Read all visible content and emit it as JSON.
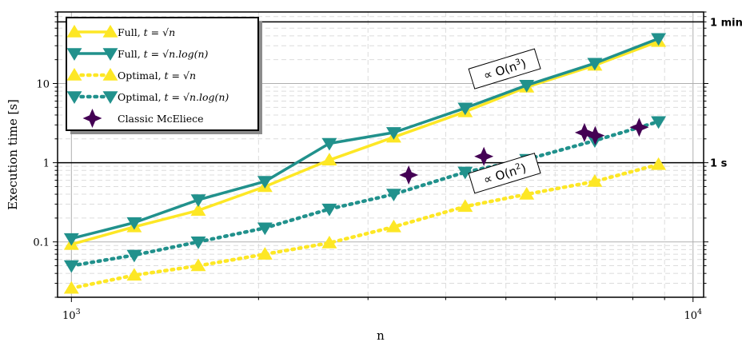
{
  "chart_data": {
    "type": "line",
    "xlabel": "n",
    "ylabel": "Execution time [s]",
    "xscale": "log",
    "yscale": "log",
    "xlim": [
      950,
      10400
    ],
    "ylim": [
      0.02,
      80
    ],
    "x_ticks": [
      {
        "value": 1000,
        "label": "10",
        "exp": "3"
      },
      {
        "value": 10000,
        "label": "10",
        "exp": "4"
      }
    ],
    "y_ticks": [
      {
        "value": 0.1,
        "label": "0.1"
      },
      {
        "value": 1,
        "label": "1"
      },
      {
        "value": 10,
        "label": "10"
      }
    ],
    "right_ticks": [
      {
        "value": 1,
        "label": "1 s"
      },
      {
        "value": 60,
        "label": "1 min"
      }
    ],
    "grid": true,
    "legend_position": "upper-left",
    "series": [
      {
        "name": "Full, t = √n",
        "style": "solid",
        "color": "#fde725",
        "marker": "triangle-up",
        "x": [
          1000,
          1262,
          1600,
          2048,
          2600,
          3300,
          4300,
          5400,
          6950,
          8800
        ],
        "y": [
          0.093,
          0.155,
          0.25,
          0.5,
          1.08,
          2.1,
          4.4,
          9.0,
          17,
          34
        ]
      },
      {
        "name": "Full, t = √(n.log(n))",
        "style": "solid",
        "color": "#21918c",
        "marker": "triangle-down",
        "x": [
          1000,
          1262,
          1600,
          2048,
          2600,
          3300,
          4300,
          5400,
          6950,
          8800
        ],
        "y": [
          0.11,
          0.175,
          0.34,
          0.58,
          1.75,
          2.4,
          4.9,
          9.5,
          18,
          37
        ]
      },
      {
        "name": "Optimal, t = √n",
        "style": "dotted",
        "color": "#fde725",
        "marker": "triangle-up",
        "x": [
          1000,
          1262,
          1600,
          2048,
          2600,
          3300,
          4300,
          5400,
          6950,
          8800
        ],
        "y": [
          0.026,
          0.038,
          0.05,
          0.07,
          0.097,
          0.155,
          0.28,
          0.4,
          0.58,
          0.95
        ]
      },
      {
        "name": "Optimal, t = √(n.log(n))",
        "style": "dotted",
        "color": "#21918c",
        "marker": "triangle-down",
        "x": [
          1000,
          1262,
          1600,
          2048,
          2600,
          3300,
          4300,
          5400,
          6950,
          8800
        ],
        "y": [
          0.05,
          0.068,
          0.1,
          0.15,
          0.26,
          0.4,
          0.76,
          1.1,
          1.9,
          3.3
        ]
      },
      {
        "name": "Classic McEliece",
        "style": "none",
        "color": "#440154",
        "marker": "star4",
        "x": [
          3488,
          4608,
          6688,
          6960,
          8192
        ],
        "y": [
          0.7,
          1.2,
          2.4,
          2.2,
          2.8
        ]
      }
    ],
    "annotations": [
      {
        "text_main": "∝ O(n",
        "sup": "3",
        "text_end": ")",
        "x": 4980,
        "y": 15,
        "rotation": -17
      },
      {
        "text_main": "∝ O(n",
        "sup": "2",
        "text_end": ")",
        "x": 4980,
        "y": 0.72,
        "rotation": -17
      }
    ]
  },
  "legend": [
    {
      "label": "Full, ",
      "math": "t = √n",
      "style": "solid",
      "color": "#fde725",
      "marker": "triangle-up"
    },
    {
      "label": "Full, ",
      "math": "t = √n.log(n)",
      "style": "solid",
      "color": "#21918c",
      "marker": "triangle-down"
    },
    {
      "label": "Optimal, ",
      "math": "t = √n",
      "style": "dotted",
      "color": "#fde725",
      "marker": "triangle-up"
    },
    {
      "label": "Optimal, ",
      "math": "t = √n.log(n)",
      "style": "dotted",
      "color": "#21918c",
      "marker": "triangle-down"
    },
    {
      "label": "Classic McEliece",
      "math": "",
      "style": "none",
      "color": "#440154",
      "marker": "star4"
    }
  ]
}
